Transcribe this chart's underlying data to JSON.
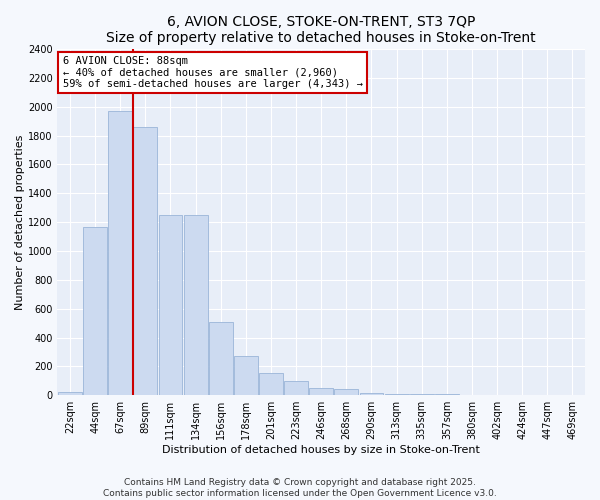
{
  "title": "6, AVION CLOSE, STOKE-ON-TRENT, ST3 7QP",
  "subtitle": "Size of property relative to detached houses in Stoke-on-Trent",
  "xlabel": "Distribution of detached houses by size in Stoke-on-Trent",
  "ylabel": "Number of detached properties",
  "categories": [
    "22sqm",
    "44sqm",
    "67sqm",
    "89sqm",
    "111sqm",
    "134sqm",
    "156sqm",
    "178sqm",
    "201sqm",
    "223sqm",
    "246sqm",
    "268sqm",
    "290sqm",
    "313sqm",
    "335sqm",
    "357sqm",
    "380sqm",
    "402sqm",
    "424sqm",
    "447sqm",
    "469sqm"
  ],
  "values": [
    20,
    1170,
    1970,
    1860,
    1250,
    1250,
    510,
    270,
    155,
    100,
    50,
    40,
    15,
    10,
    5,
    5,
    2,
    2,
    2,
    2,
    2
  ],
  "bar_color": "#ccdaf0",
  "bar_edge_color": "#9ab5d8",
  "annotation_title": "6 AVION CLOSE: 88sqm",
  "annotation_line1": "← 40% of detached houses are smaller (2,960)",
  "annotation_line2": "59% of semi-detached houses are larger (4,343) →",
  "annotation_box_color": "#ffffff",
  "annotation_box_edge": "#cc0000",
  "vline_color": "#cc0000",
  "ylim": [
    0,
    2400
  ],
  "yticks": [
    0,
    200,
    400,
    600,
    800,
    1000,
    1200,
    1400,
    1600,
    1800,
    2000,
    2200,
    2400
  ],
  "footer1": "Contains HM Land Registry data © Crown copyright and database right 2025.",
  "footer2": "Contains public sector information licensed under the Open Government Licence v3.0.",
  "plot_bg_color": "#e8eef8",
  "fig_bg_color": "#f5f8fd",
  "grid_color": "#ffffff",
  "title_fontsize": 10,
  "tick_fontsize": 7,
  "label_fontsize": 8,
  "footer_fontsize": 6.5,
  "vline_bar_index": 3
}
